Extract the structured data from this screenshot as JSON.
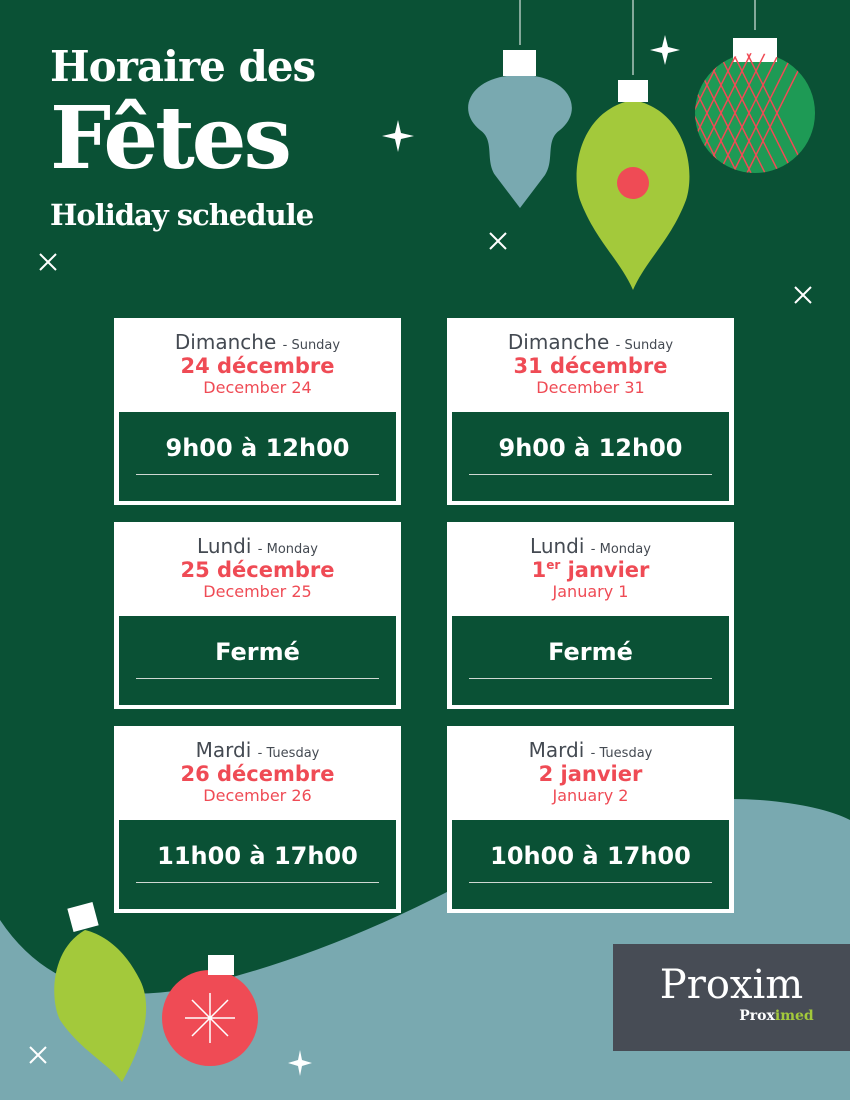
{
  "title": {
    "line1": "Horaire des",
    "line2": "Fêtes",
    "line3": "Holiday schedule"
  },
  "colors": {
    "background": "#0a5135",
    "accent": "#ef4b55",
    "wave": "#79a9b0",
    "ornament_green": "#a3c93b"
  },
  "cards": [
    {
      "day": "Dimanche",
      "day_en": "- Sunday",
      "date": "24 décembre",
      "date_en": "December 24",
      "hours": "9h00 à 12h00"
    },
    {
      "day": "Dimanche",
      "day_en": "- Sunday",
      "date": "31 décembre",
      "date_en": "December 31",
      "hours": "9h00 à 12h00"
    },
    {
      "day": "Lundi",
      "day_en": "- Monday",
      "date": "25 décembre",
      "date_en": "December 25",
      "hours": "Fermé"
    },
    {
      "day": "Lundi",
      "day_en": "- Monday",
      "date_num": "1",
      "date_sup": "er",
      "date_rest": " janvier",
      "date_en": "January 1",
      "hours": "Fermé"
    },
    {
      "day": "Mardi",
      "day_en": "- Tuesday",
      "date": "26 décembre",
      "date_en": "December 26",
      "hours": "11h00 à 17h00"
    },
    {
      "day": "Mardi",
      "day_en": "- Tuesday",
      "date": "2 janvier",
      "date_en": "January 2",
      "hours": "10h00 à 17h00"
    }
  ],
  "logo": {
    "main": "Proxim",
    "sub_a": "Prox",
    "sub_b": "imed"
  }
}
